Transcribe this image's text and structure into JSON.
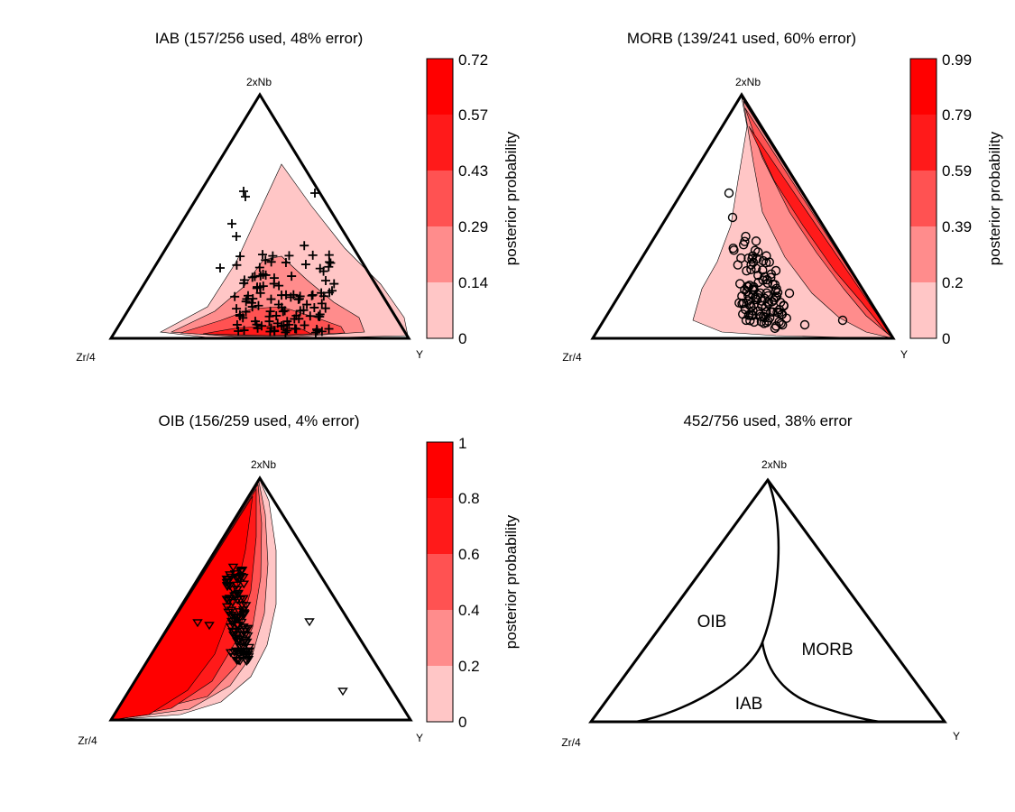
{
  "colors": {
    "levels": [
      "#ffffff",
      "#ffc6c6",
      "#ff8c8c",
      "#ff5252",
      "#ff1a1a",
      "#ff0000"
    ],
    "outline": "#000000"
  },
  "chart_data": [
    {
      "type": "ternary-contour",
      "title": "IAB (157/256 used, 48% error)",
      "corners": {
        "top": "2xNb",
        "left": "Zr/4",
        "right": "Y"
      },
      "marker": "plus",
      "colorbar": {
        "ticks": [
          "0",
          "0.14",
          "0.29",
          "0.43",
          "0.57",
          "0.72"
        ],
        "label": "posterior probability"
      }
    },
    {
      "type": "ternary-contour",
      "title": "MORB (139/241 used, 60% error)",
      "corners": {
        "top": "2xNb",
        "left": "Zr/4",
        "right": "Y"
      },
      "marker": "circle",
      "colorbar": {
        "ticks": [
          "0",
          "0.2",
          "0.39",
          "0.59",
          "0.79",
          "0.99"
        ],
        "label": "posterior probability"
      }
    },
    {
      "type": "ternary-contour",
      "title": "OIB (156/259 used, 4% error)",
      "corners": {
        "top": "2xNb",
        "left": "Zr/4",
        "right": "Y"
      },
      "marker": "triangle",
      "colorbar": {
        "ticks": [
          "0",
          "0.2",
          "0.4",
          "0.6",
          "0.8",
          "1"
        ],
        "label": "posterior probability"
      }
    },
    {
      "type": "ternary-regions",
      "title": "452/756 used, 38% error",
      "corners": {
        "top": "2xNb",
        "left": "Zr/4",
        "right": "Y"
      },
      "regions": [
        "OIB",
        "MORB",
        "IAB"
      ]
    }
  ]
}
